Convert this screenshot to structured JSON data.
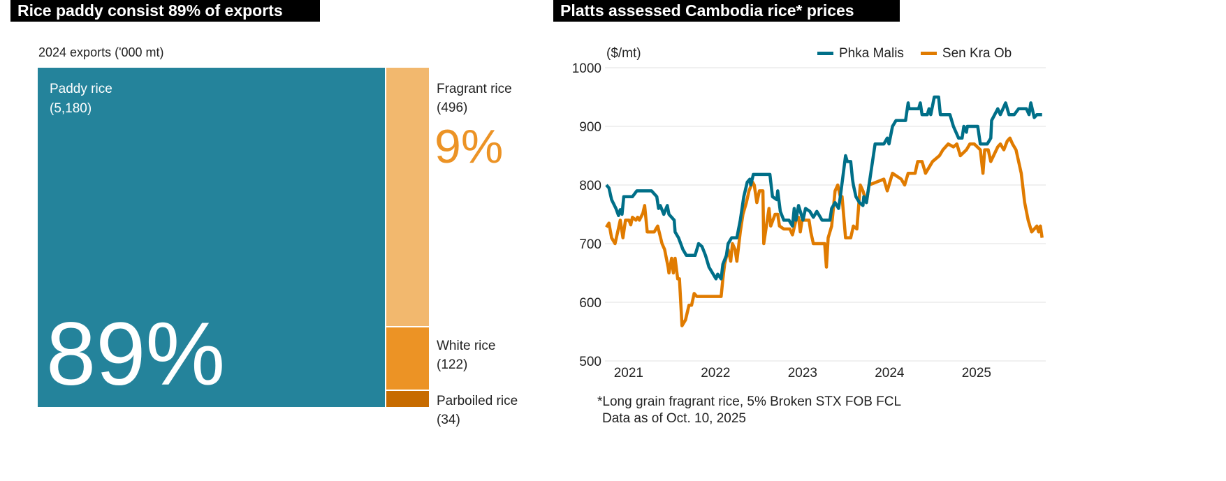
{
  "left": {
    "title": "Rice paddy consist 89% of exports",
    "subtitle": "2024 exports ('000 mt)",
    "big_percent": "89%",
    "small_percent": "9%",
    "segments": [
      {
        "name": "Paddy rice",
        "value_label": "(5,180)",
        "value": 5180,
        "color": "#24839b"
      },
      {
        "name": "Fragrant rice",
        "value_label": "(496)",
        "value": 496,
        "color": "#f2b86e"
      },
      {
        "name": "White rice",
        "value_label": "(122)",
        "value": 122,
        "color": "#ec9325"
      },
      {
        "name": "Parboiled rice",
        "value_label": "(34)",
        "value": 34,
        "color": "#c76b00"
      }
    ]
  },
  "right": {
    "title": "Platts assessed Cambodia rice* prices",
    "unit": "($/mt)",
    "footnote": "*Long grain fragrant rice, 5% Broken STX FOB FCL",
    "asof": "Data as of Oct. 10, 2025"
  },
  "chart_data": {
    "type": "line",
    "title": "Platts assessed Cambodia rice* prices",
    "ylabel": "($/mt)",
    "ylim": [
      500,
      1000
    ],
    "xlim": [
      2020.76,
      2025.8
    ],
    "yticks": [
      "500",
      "600",
      "700",
      "800",
      "900",
      "1000"
    ],
    "xticks": [
      "2021",
      "2022",
      "2023",
      "2024",
      "2025"
    ],
    "grid": true,
    "legend": "top-right",
    "series": [
      {
        "name": "Phka Malis",
        "color": "#006f88",
        "points": [
          [
            2020.76,
            800
          ],
          [
            2020.79,
            795
          ],
          [
            2020.82,
            775
          ],
          [
            2020.87,
            760
          ],
          [
            2020.9,
            748
          ],
          [
            2020.92,
            758
          ],
          [
            2020.94,
            750
          ],
          [
            2020.96,
            780
          ],
          [
            2021.06,
            780
          ],
          [
            2021.11,
            790
          ],
          [
            2021.28,
            790
          ],
          [
            2021.34,
            780
          ],
          [
            2021.36,
            760
          ],
          [
            2021.38,
            765
          ],
          [
            2021.42,
            750
          ],
          [
            2021.46,
            765
          ],
          [
            2021.48,
            750
          ],
          [
            2021.54,
            740
          ],
          [
            2021.55,
            720
          ],
          [
            2021.59,
            710
          ],
          [
            2021.64,
            690
          ],
          [
            2021.68,
            680
          ],
          [
            2021.78,
            680
          ],
          [
            2021.82,
            700
          ],
          [
            2021.86,
            695
          ],
          [
            2021.9,
            680
          ],
          [
            2021.94,
            660
          ],
          [
            2021.98,
            650
          ],
          [
            2022.02,
            640
          ],
          [
            2022.04,
            648
          ],
          [
            2022.08,
            640
          ],
          [
            2022.1,
            665
          ],
          [
            2022.14,
            680
          ],
          [
            2022.16,
            700
          ],
          [
            2022.2,
            710
          ],
          [
            2022.26,
            710
          ],
          [
            2022.3,
            740
          ],
          [
            2022.34,
            780
          ],
          [
            2022.38,
            805
          ],
          [
            2022.41,
            810
          ],
          [
            2022.42,
            800
          ],
          [
            2022.45,
            818
          ],
          [
            2022.64,
            818
          ],
          [
            2022.67,
            780
          ],
          [
            2022.72,
            775
          ],
          [
            2022.73,
            790
          ],
          [
            2022.76,
            755
          ],
          [
            2022.8,
            740
          ],
          [
            2022.86,
            740
          ],
          [
            2022.9,
            730
          ],
          [
            2022.92,
            760
          ],
          [
            2022.94,
            740
          ],
          [
            2022.97,
            765
          ],
          [
            2023.02,
            740
          ],
          [
            2023.05,
            760
          ],
          [
            2023.1,
            755
          ],
          [
            2023.14,
            745
          ],
          [
            2023.18,
            755
          ],
          [
            2023.24,
            740
          ],
          [
            2023.33,
            740
          ],
          [
            2023.35,
            760
          ],
          [
            2023.39,
            770
          ],
          [
            2023.43,
            760
          ],
          [
            2023.45,
            780
          ],
          [
            2023.51,
            850
          ],
          [
            2023.53,
            840
          ],
          [
            2023.57,
            840
          ],
          [
            2023.59,
            810
          ],
          [
            2023.6,
            800
          ],
          [
            2023.63,
            780
          ],
          [
            2023.67,
            770
          ],
          [
            2023.71,
            765
          ],
          [
            2023.72,
            780
          ],
          [
            2023.75,
            770
          ],
          [
            2023.76,
            780
          ],
          [
            2023.85,
            870
          ],
          [
            2023.95,
            870
          ],
          [
            2023.99,
            880
          ],
          [
            2024.01,
            870
          ],
          [
            2024.05,
            900
          ],
          [
            2024.09,
            910
          ],
          [
            2024.2,
            910
          ],
          [
            2024.23,
            940
          ],
          [
            2024.24,
            930
          ],
          [
            2024.35,
            930
          ],
          [
            2024.37,
            940
          ],
          [
            2024.39,
            920
          ],
          [
            2024.45,
            920
          ],
          [
            2024.47,
            930
          ],
          [
            2024.49,
            920
          ],
          [
            2024.53,
            950
          ],
          [
            2024.58,
            950
          ],
          [
            2024.6,
            920
          ],
          [
            2024.71,
            920
          ],
          [
            2024.75,
            900
          ],
          [
            2024.81,
            880
          ],
          [
            2024.85,
            880
          ],
          [
            2024.87,
            900
          ],
          [
            2024.9,
            890
          ],
          [
            2024.91,
            900
          ],
          [
            2025.03,
            900
          ],
          [
            2025.06,
            870
          ],
          [
            2025.14,
            870
          ],
          [
            2025.18,
            880
          ],
          [
            2025.19,
            910
          ],
          [
            2025.26,
            930
          ],
          [
            2025.29,
            920
          ],
          [
            2025.35,
            940
          ],
          [
            2025.39,
            920
          ],
          [
            2025.45,
            920
          ],
          [
            2025.5,
            930
          ],
          [
            2025.59,
            930
          ],
          [
            2025.62,
            920
          ],
          [
            2025.64,
            940
          ],
          [
            2025.68,
            915
          ],
          [
            2025.71,
            920
          ],
          [
            2025.77,
            920
          ]
        ]
      },
      {
        "name": "Sen Kra Ob",
        "color": "#e07b00",
        "points": [
          [
            2020.76,
            728
          ],
          [
            2020.79,
            735
          ],
          [
            2020.82,
            710
          ],
          [
            2020.86,
            700
          ],
          [
            2020.89,
            720
          ],
          [
            2020.92,
            740
          ],
          [
            2020.95,
            710
          ],
          [
            2020.98,
            740
          ],
          [
            2021.02,
            740
          ],
          [
            2021.04,
            732
          ],
          [
            2021.06,
            745
          ],
          [
            2021.1,
            740
          ],
          [
            2021.12,
            745
          ],
          [
            2021.14,
            740
          ],
          [
            2021.18,
            752
          ],
          [
            2021.2,
            765
          ],
          [
            2021.23,
            720
          ],
          [
            2021.31,
            720
          ],
          [
            2021.35,
            730
          ],
          [
            2021.4,
            700
          ],
          [
            2021.43,
            690
          ],
          [
            2021.47,
            660
          ],
          [
            2021.48,
            650
          ],
          [
            2021.51,
            675
          ],
          [
            2021.53,
            650
          ],
          [
            2021.55,
            675
          ],
          [
            2021.58,
            640
          ],
          [
            2021.6,
            640
          ],
          [
            2021.63,
            560
          ],
          [
            2021.67,
            570
          ],
          [
            2021.71,
            595
          ],
          [
            2021.74,
            595
          ],
          [
            2021.77,
            615
          ],
          [
            2021.8,
            610
          ],
          [
            2022.08,
            610
          ],
          [
            2022.1,
            640
          ],
          [
            2022.12,
            665
          ],
          [
            2022.16,
            690
          ],
          [
            2022.19,
            670
          ],
          [
            2022.21,
            700
          ],
          [
            2022.24,
            690
          ],
          [
            2022.26,
            670
          ],
          [
            2022.3,
            720
          ],
          [
            2022.33,
            750
          ],
          [
            2022.37,
            770
          ],
          [
            2022.4,
            790
          ],
          [
            2022.44,
            805
          ],
          [
            2022.46,
            800
          ],
          [
            2022.49,
            770
          ],
          [
            2022.52,
            790
          ],
          [
            2022.56,
            790
          ],
          [
            2022.57,
            700
          ],
          [
            2022.61,
            740
          ],
          [
            2022.63,
            760
          ],
          [
            2022.65,
            730
          ],
          [
            2022.7,
            750
          ],
          [
            2022.73,
            750
          ],
          [
            2022.75,
            730
          ],
          [
            2022.8,
            725
          ],
          [
            2022.87,
            725
          ],
          [
            2022.9,
            715
          ],
          [
            2022.94,
            740
          ],
          [
            2022.97,
            745
          ],
          [
            2022.99,
            720
          ],
          [
            2023.01,
            740
          ],
          [
            2023.09,
            740
          ],
          [
            2023.11,
            720
          ],
          [
            2023.14,
            700
          ],
          [
            2023.27,
            700
          ],
          [
            2023.29,
            660
          ],
          [
            2023.31,
            710
          ],
          [
            2023.35,
            730
          ],
          [
            2023.39,
            790
          ],
          [
            2023.42,
            800
          ],
          [
            2023.45,
            780
          ],
          [
            2023.47,
            780
          ],
          [
            2023.51,
            710
          ],
          [
            2023.57,
            710
          ],
          [
            2023.6,
            730
          ],
          [
            2023.64,
            725
          ],
          [
            2023.68,
            800
          ],
          [
            2023.71,
            790
          ],
          [
            2023.75,
            770
          ],
          [
            2023.78,
            800
          ],
          [
            2023.95,
            810
          ],
          [
            2023.99,
            790
          ],
          [
            2024.05,
            820
          ],
          [
            2024.15,
            810
          ],
          [
            2024.19,
            800
          ],
          [
            2024.23,
            820
          ],
          [
            2024.31,
            820
          ],
          [
            2024.34,
            840
          ],
          [
            2024.39,
            840
          ],
          [
            2024.43,
            820
          ],
          [
            2024.47,
            830
          ],
          [
            2024.51,
            840
          ],
          [
            2024.59,
            850
          ],
          [
            2024.63,
            860
          ],
          [
            2024.69,
            870
          ],
          [
            2024.75,
            865
          ],
          [
            2024.79,
            870
          ],
          [
            2024.83,
            850
          ],
          [
            2024.9,
            860
          ],
          [
            2024.94,
            870
          ],
          [
            2024.99,
            870
          ],
          [
            2025.06,
            860
          ],
          [
            2025.09,
            820
          ],
          [
            2025.11,
            860
          ],
          [
            2025.15,
            860
          ],
          [
            2025.18,
            840
          ],
          [
            2025.26,
            865
          ],
          [
            2025.29,
            870
          ],
          [
            2025.33,
            860
          ],
          [
            2025.37,
            875
          ],
          [
            2025.4,
            880
          ],
          [
            2025.43,
            870
          ],
          [
            2025.47,
            860
          ],
          [
            2025.53,
            820
          ],
          [
            2025.57,
            770
          ],
          [
            2025.61,
            740
          ],
          [
            2025.65,
            720
          ],
          [
            2025.71,
            730
          ],
          [
            2025.73,
            720
          ],
          [
            2025.75,
            730
          ],
          [
            2025.77,
            710
          ]
        ]
      }
    ]
  }
}
